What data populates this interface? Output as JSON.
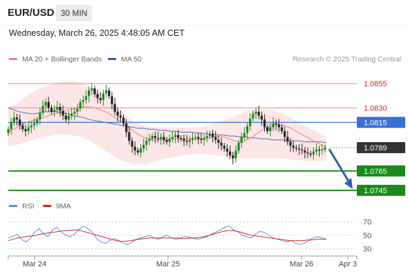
{
  "header": {
    "symbol": "EUR/USD",
    "timeframe": "30 MIN",
    "datetime": "Wednesday, March 26, 2025 4:48:05 AM CET"
  },
  "legend": {
    "ma20_label": "MA 20 + Bollinger Bands",
    "ma50_label": "MA 50",
    "copyright": "Research © 2025 Trading Central",
    "rsi_label": "RSI",
    "ma9_label": "9MA"
  },
  "colors": {
    "bollinger_fill": "#fde2e2",
    "ma20": "#f08080",
    "ma50": "#4a6fb5",
    "resistance": "#f08080",
    "pivot": "#3a6fd8",
    "support": "#1a8a1a",
    "current": "#333333",
    "bull": "#1a8a1a",
    "bear": "#222222",
    "arrow": "#2f5fa8",
    "rsi": "#5b8fe0",
    "rsi_ma": "#e02020"
  },
  "chart_data": [
    {
      "type": "candlestick",
      "x_range": [
        "Mar 24",
        "Apr 3"
      ],
      "ylim": [
        1.0735,
        1.087
      ],
      "x_ticks": [
        "Mar 24",
        "Mar 25",
        "Mar 26",
        "Apr 3"
      ],
      "levels": [
        {
          "value": 1.0855,
          "label": "1.0855",
          "kind": "resistance"
        },
        {
          "value": 1.083,
          "label": "1.0830",
          "kind": "resistance"
        },
        {
          "value": 1.0815,
          "label": "1.0815",
          "kind": "pivot"
        },
        {
          "value": 1.0789,
          "label": "1.0789",
          "kind": "current"
        },
        {
          "value": 1.0765,
          "label": "1.0765",
          "kind": "support"
        },
        {
          "value": 1.0745,
          "label": "1.0745",
          "kind": "support"
        }
      ],
      "close_series": [
        1.0808,
        1.0815,
        1.082,
        1.0818,
        1.0812,
        1.0808,
        1.0806,
        1.081,
        1.0812,
        1.0814,
        1.0818,
        1.0825,
        1.0832,
        1.0836,
        1.083,
        1.0826,
        1.0828,
        1.0831,
        1.0827,
        1.0822,
        1.0818,
        1.0822,
        1.0824,
        1.0826,
        1.0829,
        1.0836,
        1.0838,
        1.0842,
        1.0848,
        1.085,
        1.0844,
        1.084,
        1.0838,
        1.0845,
        1.0848,
        1.0842,
        1.0834,
        1.0826,
        1.0822,
        1.082,
        1.0814,
        1.0805,
        1.0796,
        1.079,
        1.0786,
        1.0784,
        1.0788,
        1.0792,
        1.0796,
        1.0798,
        1.0801,
        1.0799,
        1.0798,
        1.08,
        1.0797,
        1.0795,
        1.0798,
        1.08,
        1.0802,
        1.0799,
        1.0798,
        1.0796,
        1.0795,
        1.0797,
        1.0799,
        1.08,
        1.0798,
        1.0797,
        1.0799,
        1.0801,
        1.0803,
        1.08,
        1.0797,
        1.0794,
        1.0791,
        1.0788,
        1.0785,
        1.0781,
        1.0778,
        1.0786,
        1.0794,
        1.08,
        1.0804,
        1.0811,
        1.0819,
        1.0824,
        1.0826,
        1.0822,
        1.0818,
        1.081,
        1.0806,
        1.081,
        1.0814,
        1.0813,
        1.081,
        1.0806,
        1.08,
        1.0795,
        1.0791,
        1.0789,
        1.0788,
        1.0787,
        1.0786,
        1.0784,
        1.0783,
        1.0782,
        1.0785,
        1.0787,
        1.0786,
        1.0787,
        1.0789
      ],
      "ma20_series": [
        1.0805,
        1.0808,
        1.0811,
        1.0814,
        1.0816,
        1.0818,
        1.0819,
        1.0821,
        1.0823,
        1.0824,
        1.0826,
        1.0828,
        1.0829,
        1.083,
        1.0831,
        1.0831,
        1.083,
        1.0828,
        1.0826,
        1.0823,
        1.0819,
        1.0815,
        1.0811,
        1.0807,
        1.0803,
        1.08,
        1.0798,
        1.0797,
        1.0797,
        1.0797,
        1.0798,
        1.0798,
        1.0798,
        1.0798,
        1.0798,
        1.0798,
        1.0798,
        1.0799,
        1.08,
        1.0801,
        1.08,
        1.0798,
        1.0796,
        1.0794,
        1.0796,
        1.0799,
        1.0803,
        1.0807,
        1.081,
        1.0812,
        1.0813,
        1.0812,
        1.081,
        1.0807,
        1.0804,
        1.0801,
        1.0798,
        1.0795,
        1.0792,
        1.079
      ],
      "ma50_series": [
        1.083,
        1.0828,
        1.0826,
        1.0825,
        1.0824,
        1.0824,
        1.0825,
        1.0826,
        1.0826,
        1.0826,
        1.0825,
        1.0824,
        1.0822,
        1.0821,
        1.082,
        1.0818,
        1.0817,
        1.0816,
        1.0815,
        1.0814,
        1.0813,
        1.0812,
        1.0811,
        1.081,
        1.0809,
        1.0809,
        1.0808,
        1.0808,
        1.0807,
        1.0807,
        1.0806,
        1.0806,
        1.0805,
        1.0805,
        1.0805,
        1.0804,
        1.0804,
        1.0803,
        1.0803,
        1.0802,
        1.0802,
        1.0801,
        1.0801,
        1.08,
        1.08,
        1.0799,
        1.0799,
        1.0798,
        1.0798,
        1.0797,
        1.0797,
        1.0797,
        1.0796,
        1.0796,
        1.0796,
        1.0795,
        1.0795,
        1.0795,
        1.0795,
        1.0794
      ],
      "bb_upper": [
        1.083,
        1.0835,
        1.0842,
        1.0848,
        1.0852,
        1.0855,
        1.0857,
        1.0858,
        1.0856,
        1.0852,
        1.0846,
        1.0838,
        1.083,
        1.0822,
        1.0815,
        1.0812,
        1.081,
        1.081,
        1.081,
        1.081,
        1.081,
        1.081,
        1.0812,
        1.0815,
        1.0818,
        1.0822,
        1.0826,
        1.0828,
        1.0829,
        1.0828,
        1.0825,
        1.082,
        1.0815,
        1.081,
        1.0805,
        1.08
      ],
      "bb_lower": [
        1.079,
        1.0792,
        1.0795,
        1.0798,
        1.08,
        1.0802,
        1.0803,
        1.0802,
        1.08,
        1.0796,
        1.079,
        1.0784,
        1.0778,
        1.0774,
        1.0772,
        1.0772,
        1.0774,
        1.0777,
        1.0779,
        1.0781,
        1.0782,
        1.0783,
        1.0782,
        1.0781,
        1.078,
        1.0779,
        1.0778,
        1.0778,
        1.0778,
        1.0778,
        1.0778,
        1.0777,
        1.0776,
        1.0775,
        1.0775,
        1.0775
      ],
      "forecast_path": [
        1.0789,
        1.0745
      ]
    },
    {
      "type": "line",
      "name": "RSI",
      "ylim": [
        20,
        80
      ],
      "y_ticks": [
        30,
        50,
        70
      ],
      "rsi_series": [
        46,
        48,
        52,
        44,
        40,
        45,
        55,
        60,
        52,
        48,
        58,
        62,
        55,
        50,
        48,
        52,
        58,
        64,
        60,
        55,
        45,
        40,
        38,
        42,
        45,
        42,
        38,
        36,
        40,
        44,
        46,
        48,
        50,
        46,
        44,
        48,
        50,
        46,
        44,
        46,
        48,
        47,
        45,
        44,
        46,
        48,
        52,
        55,
        58,
        62,
        64,
        58,
        55,
        50,
        48,
        46,
        52,
        56,
        54,
        50,
        46,
        44,
        42,
        40,
        42,
        38,
        36,
        38,
        42,
        46,
        48,
        46,
        44
      ],
      "ma9_series": [
        42,
        44,
        46,
        47,
        48,
        49,
        50,
        52,
        53,
        54,
        55,
        56,
        57,
        57,
        58,
        58,
        56,
        54,
        52,
        50,
        48,
        46,
        44,
        42,
        41,
        41,
        42,
        43,
        44,
        45,
        46,
        46,
        46,
        46,
        46,
        46,
        46,
        45,
        45,
        46,
        46,
        47,
        48,
        50,
        52,
        54,
        56,
        57,
        57,
        56,
        54,
        52,
        50,
        49,
        48,
        47,
        46,
        45,
        44,
        43,
        42,
        42,
        42,
        42,
        43,
        43,
        44,
        44,
        44
      ]
    }
  ]
}
